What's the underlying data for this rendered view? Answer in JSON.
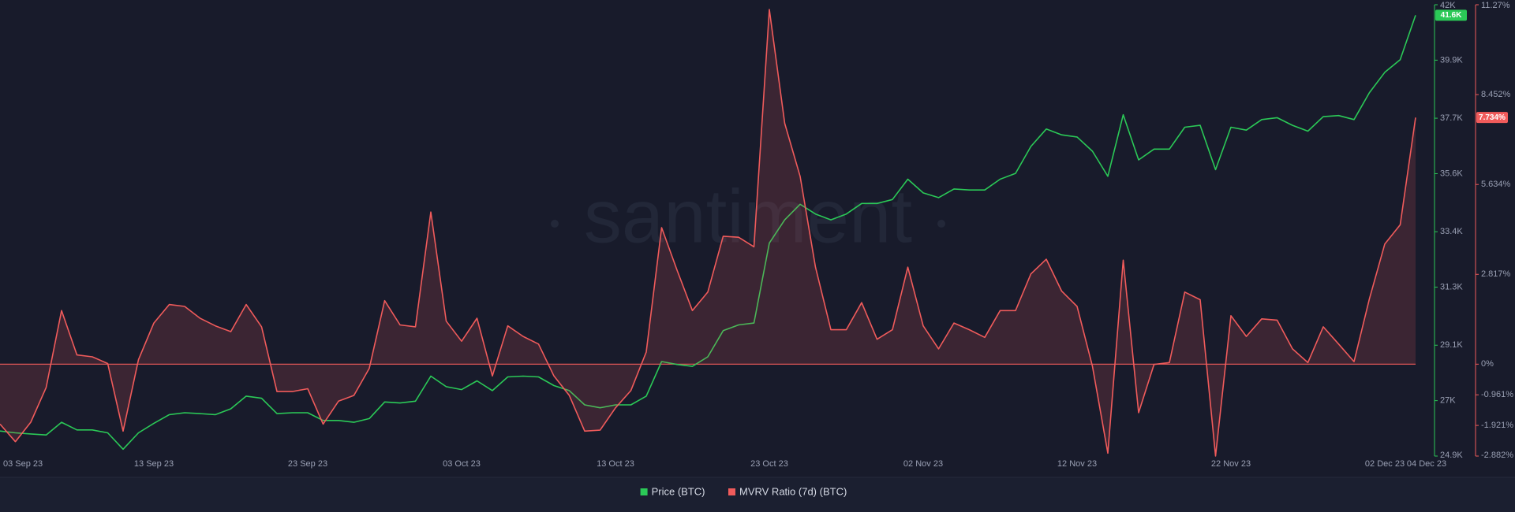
{
  "chart_data": {
    "type": "line",
    "watermark": "santiment",
    "categories": [
      "03 Sep 23",
      null,
      null,
      null,
      null,
      null,
      null,
      null,
      null,
      null,
      "13 Sep 23",
      null,
      null,
      null,
      null,
      null,
      null,
      null,
      null,
      null,
      "23 Sep 23",
      null,
      null,
      null,
      null,
      null,
      null,
      null,
      null,
      null,
      "03 Oct 23",
      null,
      null,
      null,
      null,
      null,
      null,
      null,
      null,
      null,
      "13 Oct 23",
      null,
      null,
      null,
      null,
      null,
      null,
      null,
      null,
      null,
      "23 Oct 23",
      null,
      null,
      null,
      null,
      null,
      null,
      null,
      null,
      null,
      "02 Nov 23",
      null,
      null,
      null,
      null,
      null,
      null,
      null,
      null,
      null,
      "12 Nov 23",
      null,
      null,
      null,
      null,
      null,
      null,
      null,
      null,
      null,
      "22 Nov 23",
      null,
      null,
      null,
      null,
      null,
      null,
      null,
      null,
      null,
      "02 Dec 23",
      null,
      "04 Dec 23"
    ],
    "series": [
      {
        "name": "Price (BTC)",
        "color": "#2bc957",
        "last_value_label": "41.6K",
        "values": [
          25850,
          25780,
          25740,
          25700,
          26180,
          25890,
          25890,
          25780,
          25160,
          25780,
          26140,
          26470,
          26540,
          26510,
          26470,
          26690,
          27170,
          27090,
          26510,
          26540,
          26540,
          26250,
          26250,
          26180,
          26320,
          26950,
          26910,
          26980,
          27930,
          27530,
          27420,
          27750,
          27380,
          27900,
          27930,
          27900,
          27570,
          27380,
          26840,
          26730,
          26840,
          26840,
          27170,
          28480,
          28370,
          28300,
          28660,
          29650,
          29870,
          29940,
          32970,
          33850,
          34440,
          34070,
          33850,
          34070,
          34470,
          34470,
          34620,
          35390,
          34870,
          34690,
          35020,
          34980,
          34980,
          35390,
          35610,
          36630,
          37290,
          37070,
          36990,
          36450,
          35500,
          37830,
          36120,
          36530,
          36530,
          37360,
          37430,
          35750,
          37360,
          37250,
          37650,
          37720,
          37430,
          37210,
          37760,
          37800,
          37650,
          38670,
          39440,
          39920,
          41600
        ]
      },
      {
        "name": "MVRV Ratio (7d) (BTC)",
        "color": "#f05b5b",
        "axis": "y2",
        "last_value_label": "7.734%",
        "values": [
          -1.88,
          -2.43,
          -1.82,
          -0.73,
          1.68,
          0.29,
          0.23,
          0.02,
          -2.1,
          0.14,
          1.29,
          1.87,
          1.81,
          1.44,
          1.2,
          1.02,
          1.87,
          1.17,
          -0.86,
          -0.86,
          -0.77,
          -1.88,
          -1.16,
          -0.98,
          -0.13,
          1.99,
          1.23,
          1.17,
          4.77,
          1.35,
          0.72,
          1.44,
          -0.37,
          1.2,
          0.87,
          0.63,
          -0.37,
          -0.98,
          -2.1,
          -2.07,
          -1.37,
          -0.83,
          0.38,
          4.28,
          2.95,
          1.68,
          2.26,
          4.01,
          3.98,
          3.68,
          11.12,
          7.55,
          5.89,
          3.04,
          1.08,
          1.08,
          1.93,
          0.78,
          1.08,
          3.04,
          1.2,
          0.48,
          1.29,
          1.08,
          0.84,
          1.68,
          1.68,
          2.83,
          3.29,
          2.29,
          1.81,
          -0.07,
          -2.79,
          3.26,
          -1.52,
          -0.01,
          0.05,
          2.26,
          2.02,
          -2.88,
          1.52,
          0.87,
          1.42,
          1.38,
          0.48,
          0.05,
          1.17,
          0.63,
          0.08,
          2.05,
          3.77,
          4.37,
          7.734
        ]
      }
    ],
    "ylim": [
      24900,
      42000
    ],
    "yticks": [
      {
        "value": 24900,
        "label": "24.9K"
      },
      {
        "value": 27000,
        "label": "27K"
      },
      {
        "value": 29100,
        "label": "29.1K"
      },
      {
        "value": 31300,
        "label": "31.3K"
      },
      {
        "value": 33400,
        "label": "33.4K"
      },
      {
        "value": 35600,
        "label": "35.6K"
      },
      {
        "value": 37700,
        "label": "37.7K"
      },
      {
        "value": 39900,
        "label": "39.9K"
      },
      {
        "value": 42000,
        "label": "42K"
      }
    ],
    "y2lim": [
      -2.882,
      11.27
    ],
    "y2ticks": [
      {
        "value": -2.882,
        "label": "-2.882%"
      },
      {
        "value": -1.921,
        "label": "-1.921%"
      },
      {
        "value": -0.961,
        "label": "-0.961%"
      },
      {
        "value": 0,
        "label": "0%"
      },
      {
        "value": 2.817,
        "label": "2.817%"
      },
      {
        "value": 5.634,
        "label": "5.634%"
      },
      {
        "value": 8.452,
        "label": "8.452%"
      },
      {
        "value": 11.27,
        "label": "11.27%"
      }
    ],
    "legend": "bottom"
  }
}
